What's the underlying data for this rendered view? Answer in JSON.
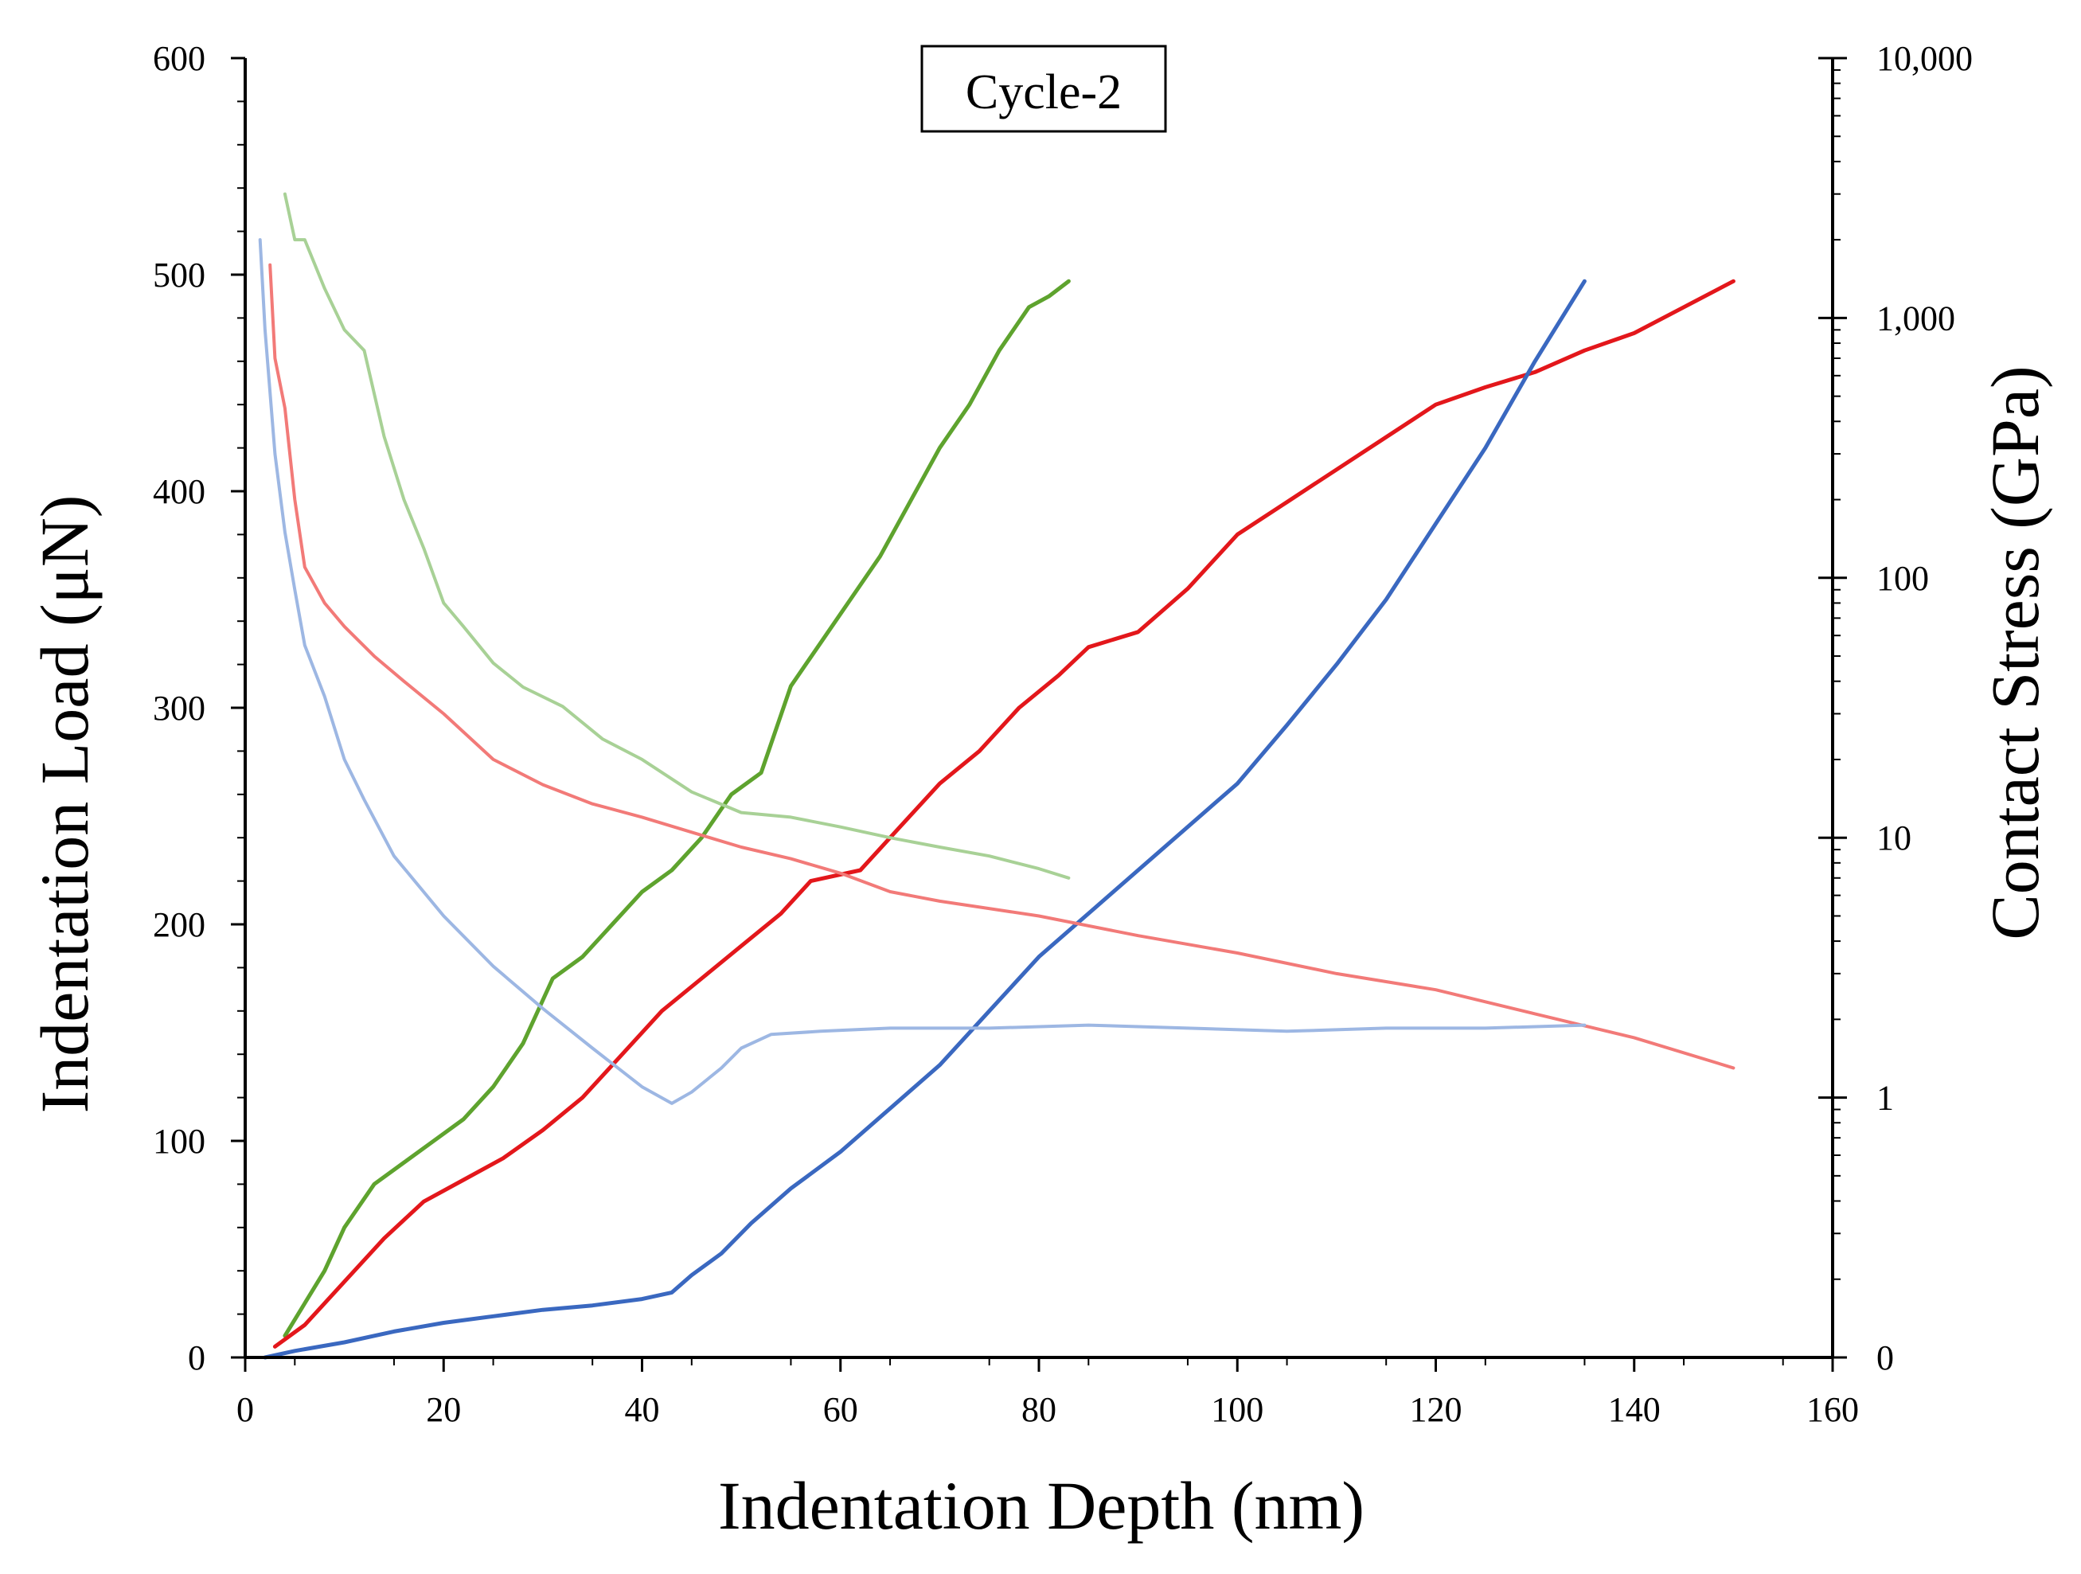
{
  "chart_data": {
    "type": "line",
    "title": "Cycle-2",
    "xlabel": "Indentation Depth (nm)",
    "ylabel": "Indentation Load (μN)",
    "y2label": "Contact Stress (GPa)",
    "xlim": [
      0,
      160
    ],
    "ylim": [
      0,
      600
    ],
    "y2lim": [
      0.1,
      10000
    ],
    "y2scale": "log",
    "x_ticks": [
      0,
      20,
      40,
      60,
      80,
      100,
      120,
      140,
      160
    ],
    "x_tick_labels": [
      "0",
      "20",
      "40",
      "60",
      "80",
      "100",
      "120",
      "140",
      "160"
    ],
    "y_ticks": [
      0,
      100,
      200,
      300,
      400,
      500,
      600
    ],
    "y_tick_labels": [
      "0",
      "100",
      "200",
      "300",
      "400",
      "500",
      "600"
    ],
    "y2_ticks": [
      0.1,
      1,
      10,
      100,
      1000,
      10000
    ],
    "y2_tick_labels": [
      "0",
      "1",
      "10",
      "100",
      "1,000",
      "10,000"
    ],
    "grid": false,
    "series": [
      {
        "name": "Load (green)",
        "axis": "left",
        "color": "#5ea32e",
        "width": 5,
        "x": [
          4,
          6,
          8,
          10,
          13,
          16,
          19,
          22,
          25,
          28,
          31,
          34,
          37,
          40,
          43,
          46,
          49,
          52,
          55,
          58,
          61,
          64,
          67,
          70,
          73,
          76,
          79,
          81,
          83
        ],
        "y": [
          10,
          25,
          40,
          60,
          80,
          90,
          100,
          110,
          125,
          145,
          175,
          185,
          200,
          215,
          225,
          240,
          260,
          270,
          310,
          330,
          350,
          370,
          395,
          420,
          440,
          465,
          485,
          490,
          497
        ]
      },
      {
        "name": "Load (red)",
        "axis": "left",
        "color": "#e3171b",
        "width": 5,
        "x": [
          3,
          6,
          10,
          14,
          18,
          22,
          26,
          30,
          34,
          38,
          42,
          46,
          50,
          54,
          57,
          62,
          66,
          70,
          74,
          78,
          82,
          85,
          90,
          95,
          100,
          105,
          110,
          115,
          120,
          125,
          130,
          135,
          140,
          145,
          150
        ],
        "y": [
          5,
          15,
          35,
          55,
          72,
          82,
          92,
          105,
          120,
          140,
          160,
          175,
          190,
          205,
          220,
          225,
          245,
          265,
          280,
          300,
          315,
          328,
          335,
          355,
          380,
          395,
          410,
          425,
          440,
          448,
          455,
          465,
          473,
          485,
          497
        ]
      },
      {
        "name": "Load (blue)",
        "axis": "left",
        "color": "#3a68c0",
        "width": 5,
        "x": [
          2,
          5,
          10,
          15,
          20,
          25,
          30,
          35,
          40,
          43,
          45,
          48,
          51,
          55,
          60,
          65,
          70,
          75,
          80,
          85,
          90,
          95,
          100,
          105,
          110,
          115,
          120,
          125,
          130,
          135
        ],
        "y": [
          0,
          3,
          7,
          12,
          16,
          19,
          22,
          24,
          27,
          30,
          38,
          48,
          62,
          78,
          95,
          115,
          135,
          160,
          185,
          205,
          225,
          245,
          265,
          292,
          320,
          350,
          385,
          420,
          460,
          497
        ]
      },
      {
        "name": "Stress (light green)",
        "axis": "right",
        "color": "#a8d196",
        "width": 4,
        "x": [
          4,
          5,
          6,
          8,
          10,
          12,
          14,
          16,
          18,
          20,
          22,
          25,
          28,
          32,
          36,
          40,
          45,
          50,
          55,
          60,
          65,
          70,
          75,
          80,
          83
        ],
        "y": [
          3000,
          2000,
          2000,
          1300,
          900,
          750,
          350,
          200,
          130,
          80,
          65,
          47,
          38,
          32,
          24,
          20,
          15,
          12.5,
          12,
          11,
          10,
          9.2,
          8.5,
          7.6,
          7
        ]
      },
      {
        "name": "Stress (light red)",
        "axis": "right",
        "color": "#f27a78",
        "width": 4,
        "x": [
          2.5,
          3,
          4,
          5,
          6,
          8,
          10,
          13,
          16,
          20,
          25,
          30,
          35,
          40,
          45,
          50,
          55,
          60,
          65,
          70,
          80,
          90,
          100,
          110,
          120,
          130,
          140,
          150
        ],
        "y": [
          1600,
          700,
          450,
          200,
          110,
          80,
          65,
          50,
          40,
          30,
          20,
          16,
          13.5,
          12,
          10.5,
          9.2,
          8.3,
          7.3,
          6.2,
          5.7,
          5,
          4.2,
          3.6,
          3,
          2.6,
          2.1,
          1.7,
          1.3
        ]
      },
      {
        "name": "Stress (light blue)",
        "axis": "right",
        "color": "#9db7e3",
        "width": 4,
        "x": [
          1.5,
          2,
          3,
          4,
          5,
          6,
          8,
          10,
          12,
          15,
          20,
          25,
          30,
          35,
          40,
          43,
          45,
          48,
          50,
          53,
          58,
          65,
          75,
          85,
          95,
          105,
          115,
          125,
          135
        ],
        "y": [
          2000,
          900,
          300,
          150,
          90,
          55,
          35,
          20,
          14,
          8.5,
          5,
          3.2,
          2.2,
          1.55,
          1.1,
          0.95,
          1.05,
          1.3,
          1.55,
          1.75,
          1.8,
          1.85,
          1.85,
          1.9,
          1.85,
          1.8,
          1.85,
          1.85,
          1.9
        ]
      }
    ]
  }
}
